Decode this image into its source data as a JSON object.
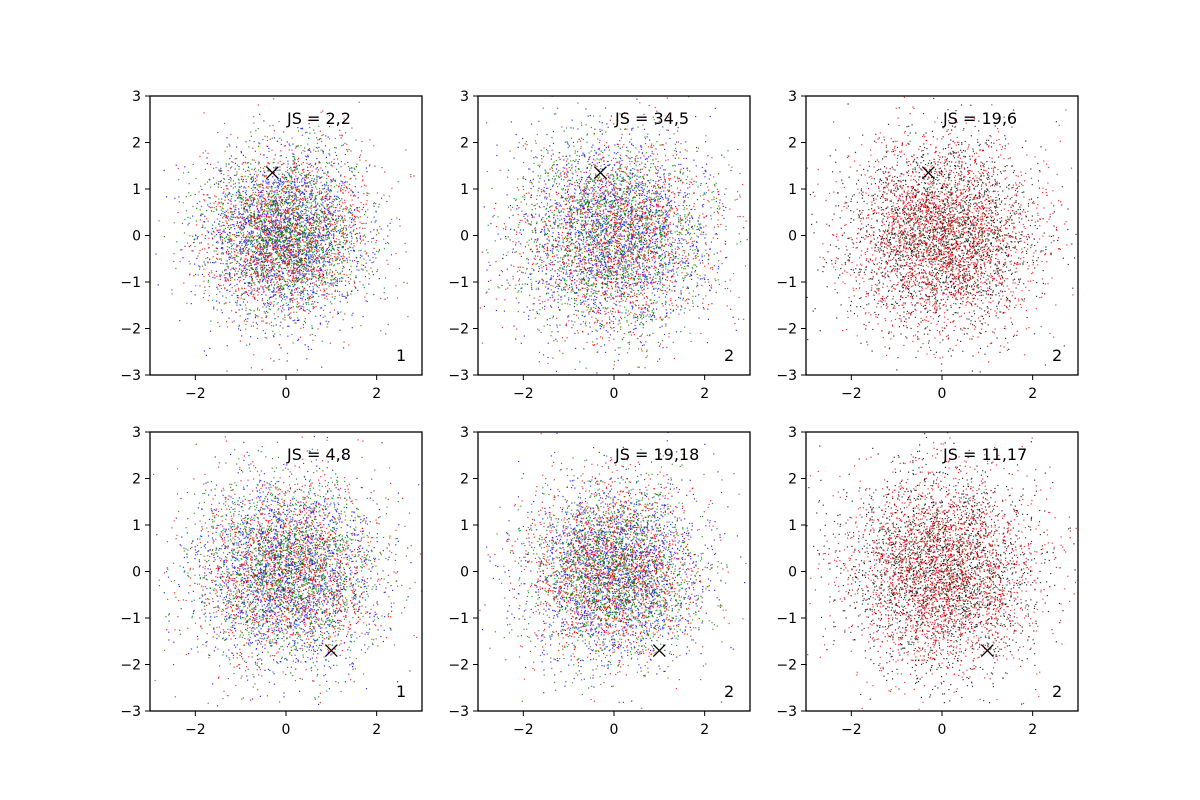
{
  "chart_data": [
    {
      "type": "scatter",
      "panel": "top-left",
      "annotation": "JS = 2,2",
      "corner_label": "1",
      "xlim": [
        -3,
        3
      ],
      "ylim": [
        -3,
        3
      ],
      "xticks": [
        -2,
        0,
        2
      ],
      "yticks": [
        -3,
        -2,
        -1,
        0,
        1,
        2,
        3
      ],
      "xtick_labels": [
        "−2",
        "0",
        "2"
      ],
      "ytick_labels": [
        "−3",
        "−2",
        "−1",
        "0",
        "1",
        "2",
        "3"
      ],
      "series_colors": [
        "#0000ff",
        "#ff0000",
        "#008000"
      ],
      "points_per_series": 1800,
      "spread": 0.9,
      "marker": {
        "x": -0.3,
        "y": 1.35
      }
    },
    {
      "type": "scatter",
      "panel": "top-middle",
      "annotation": "JS = 34,5",
      "corner_label": "2",
      "xlim": [
        -3,
        3
      ],
      "ylim": [
        -3,
        3
      ],
      "xticks": [
        -2,
        0,
        2
      ],
      "yticks": [
        -3,
        -2,
        -1,
        0,
        1,
        2,
        3
      ],
      "xtick_labels": [
        "−2",
        "0",
        "2"
      ],
      "ytick_labels": [
        "−3",
        "−2",
        "−1",
        "0",
        "1",
        "2",
        "3"
      ],
      "series_colors": [
        "#0000ff",
        "#ff0000",
        "#008000"
      ],
      "points_per_series": 1800,
      "spread": 1.05,
      "marker": {
        "x": -0.3,
        "y": 1.35
      }
    },
    {
      "type": "scatter",
      "panel": "top-right",
      "annotation": "JS = 19,6",
      "corner_label": "2",
      "xlim": [
        -3,
        3
      ],
      "ylim": [
        -3,
        3
      ],
      "xticks": [
        -2,
        0,
        2
      ],
      "yticks": [
        -3,
        -2,
        -1,
        0,
        1,
        2,
        3
      ],
      "xtick_labels": [
        "−2",
        "0",
        "2"
      ],
      "ytick_labels": [
        "−3",
        "−2",
        "−1",
        "0",
        "1",
        "2",
        "3"
      ],
      "series_colors": [
        "#000000",
        "#ff0000"
      ],
      "points_per_series": 2400,
      "spread": 1.05,
      "marker": {
        "x": -0.3,
        "y": 1.35
      }
    },
    {
      "type": "scatter",
      "panel": "bottom-left",
      "annotation": "JS = 4,8",
      "corner_label": "1",
      "xlim": [
        -3,
        3
      ],
      "ylim": [
        -3,
        3
      ],
      "xticks": [
        -2,
        0,
        2
      ],
      "yticks": [
        -3,
        -2,
        -1,
        0,
        1,
        2,
        3
      ],
      "xtick_labels": [
        "−2",
        "0",
        "2"
      ],
      "ytick_labels": [
        "−3",
        "−2",
        "−1",
        "0",
        "1",
        "2",
        "3"
      ],
      "series_colors": [
        "#0000ff",
        "#ff0000",
        "#008000"
      ],
      "points_per_series": 1800,
      "spread": 1.0,
      "marker": {
        "x": 1.0,
        "y": -1.7
      }
    },
    {
      "type": "scatter",
      "panel": "bottom-middle",
      "annotation": "JS = 19,18",
      "corner_label": "2",
      "xlim": [
        -3,
        3
      ],
      "ylim": [
        -3,
        3
      ],
      "xticks": [
        -2,
        0,
        2
      ],
      "yticks": [
        -3,
        -2,
        -1,
        0,
        1,
        2,
        3
      ],
      "xtick_labels": [
        "−2",
        "0",
        "2"
      ],
      "ytick_labels": [
        "−3",
        "−2",
        "−1",
        "0",
        "1",
        "2",
        "3"
      ],
      "series_colors": [
        "#0000ff",
        "#ff0000",
        "#008000"
      ],
      "points_per_series": 1800,
      "spread": 0.95,
      "marker": {
        "x": 1.0,
        "y": -1.7
      }
    },
    {
      "type": "scatter",
      "panel": "bottom-right",
      "annotation": "JS = 11,17",
      "corner_label": "2",
      "xlim": [
        -3,
        3
      ],
      "ylim": [
        -3,
        3
      ],
      "xticks": [
        -2,
        0,
        2
      ],
      "yticks": [
        -3,
        -2,
        -1,
        0,
        1,
        2,
        3
      ],
      "xtick_labels": [
        "−2",
        "0",
        "2"
      ],
      "ytick_labels": [
        "−3",
        "−2",
        "−1",
        "0",
        "1",
        "2",
        "3"
      ],
      "series_colors": [
        "#000000",
        "#ff0000"
      ],
      "points_per_series": 2400,
      "spread": 1.05,
      "marker": {
        "x": 1.0,
        "y": -1.7
      }
    }
  ]
}
